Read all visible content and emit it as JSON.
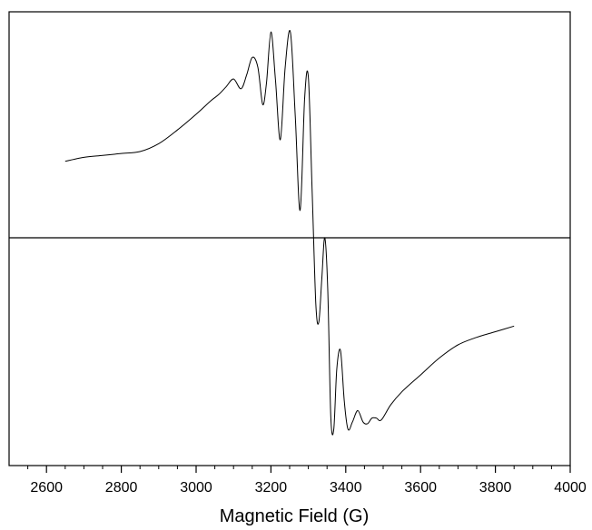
{
  "chart_data": {
    "type": "line",
    "title": "",
    "xlabel": "Magnetic Field (G)",
    "ylabel": "",
    "xlim": [
      2500,
      4000
    ],
    "ylim": [
      -1.0,
      1.0
    ],
    "x_ticks": [
      2600,
      2800,
      3000,
      3200,
      3400,
      3600,
      3800,
      4000
    ],
    "x_tick_labels": [
      "2600",
      "2800",
      "3000",
      "3200",
      "3400",
      "3600",
      "3800",
      "4000"
    ],
    "baseline_y": 0,
    "grid": false,
    "line_color": "#000000",
    "series": [
      {
        "x": [
          2650,
          2700,
          2750,
          2800,
          2850,
          2900,
          2950,
          3000,
          3040,
          3060,
          3080,
          3100,
          3120,
          3135,
          3150,
          3165,
          3178,
          3188,
          3200,
          3212,
          3225,
          3238,
          3252,
          3265,
          3278,
          3290,
          3300,
          3310,
          3320,
          3328,
          3336,
          3344,
          3352,
          3360,
          3368,
          3376,
          3386,
          3396,
          3406,
          3418,
          3432,
          3446,
          3458,
          3470,
          3482,
          3495,
          3520,
          3550,
          3600,
          3650,
          3700,
          3750,
          3800,
          3850
        ],
        "y": [
          0.39,
          0.41,
          0.42,
          0.43,
          0.44,
          0.48,
          0.55,
          0.63,
          0.7,
          0.73,
          0.77,
          0.81,
          0.76,
          0.83,
          0.92,
          0.87,
          0.68,
          0.79,
          1.05,
          0.81,
          0.5,
          0.87,
          1.05,
          0.62,
          0.14,
          0.71,
          0.82,
          0.25,
          -0.35,
          -0.45,
          -0.22,
          0.0,
          -0.28,
          -0.95,
          -1.02,
          -0.7,
          -0.6,
          -0.87,
          -1.02,
          -0.98,
          -0.92,
          -0.98,
          -0.99,
          -0.96,
          -0.96,
          -0.97,
          -0.89,
          -0.82,
          -0.73,
          -0.64,
          -0.57,
          -0.53,
          -0.5,
          -0.47
        ]
      }
    ]
  }
}
